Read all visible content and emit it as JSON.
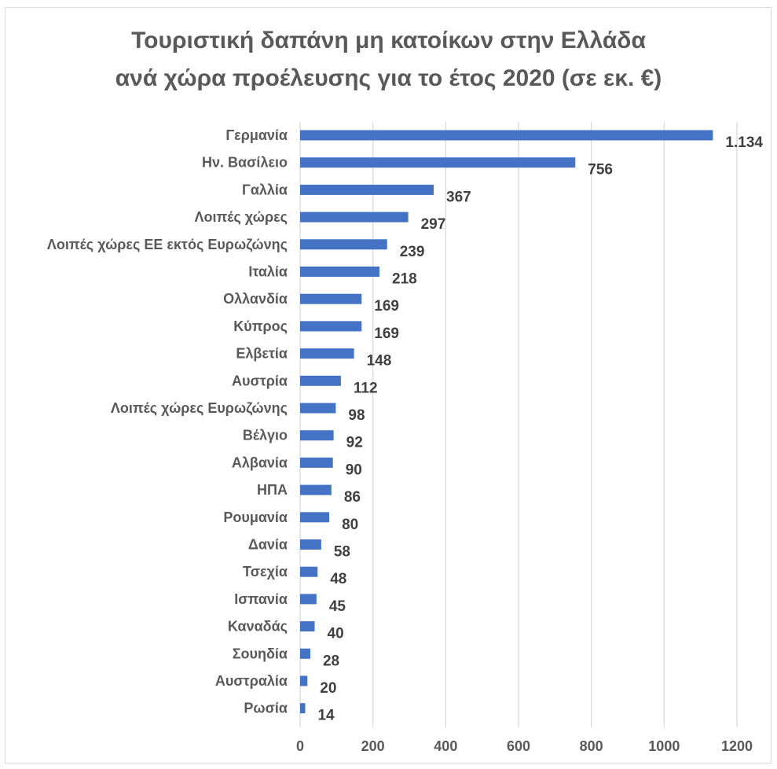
{
  "chart_data": {
    "type": "bar",
    "orientation": "horizontal",
    "title_lines": [
      "Τουριστική δαπάνη μη κατοίκων στην Ελλάδα",
      "ανά χώρα προέλευσης για το έτος 2020 (σε εκ. €)"
    ],
    "categories": [
      "Γερμανία",
      "Ην. Βασίλειο",
      "Γαλλία",
      "Λοιπές χώρες",
      "Λοιπές χώρες ΕΕ εκτός Ευρωζώνης",
      "Ιταλία",
      "Ολλανδία",
      "Κύπρος",
      "Ελβετία",
      "Αυστρία",
      "Λοιπές χώρες Ευρωζώνης",
      "Βέλγιο",
      "Αλβανία",
      "ΗΠΑ",
      "Ρουμανία",
      "Δανία",
      "Τσεχία",
      "Ισπανία",
      "Καναδάς",
      "Σουηδία",
      "Αυστραλία",
      "Ρωσία"
    ],
    "values": [
      1134,
      756,
      367,
      297,
      239,
      218,
      169,
      169,
      148,
      112,
      98,
      92,
      90,
      86,
      80,
      58,
      48,
      45,
      40,
      28,
      20,
      14
    ],
    "data_labels": [
      "1.134",
      "756",
      "367",
      "297",
      "239",
      "218",
      "169",
      "169",
      "148",
      "112",
      "98",
      "92",
      "90",
      "86",
      "80",
      "58",
      "48",
      "45",
      "40",
      "28",
      "20",
      "14"
    ],
    "xlim": [
      0,
      1200
    ],
    "xticks": [
      0,
      200,
      400,
      600,
      800,
      1000,
      1200
    ],
    "grid": "vertical",
    "legend": "none",
    "colors": {
      "bar": "#4472c4",
      "grid": "#d9d9d9",
      "text": "#595959",
      "label": "#404040"
    }
  }
}
